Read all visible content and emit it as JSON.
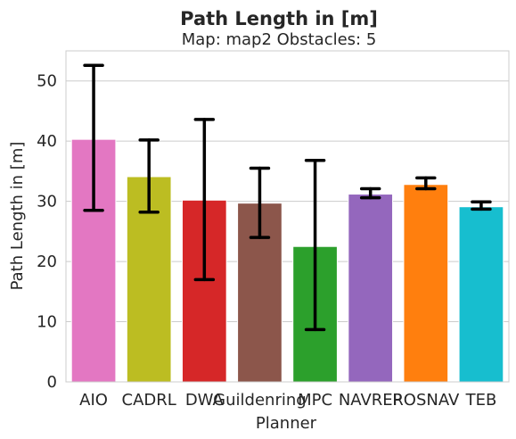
{
  "chart_data": {
    "type": "bar",
    "title": "Path Length in [m]",
    "subtitle": "Map: map2 Obstacles: 5",
    "xlabel": "Planner",
    "ylabel": "Path Length in [m]",
    "ylim": [
      0,
      55
    ],
    "yticks": [
      0,
      10,
      20,
      30,
      40,
      50
    ],
    "grid": "horizontal",
    "categories": [
      "AIO",
      "CADRL",
      "DWA",
      "Guildenring",
      "MPC",
      "NAVREP",
      "ROSNAV",
      "TEB"
    ],
    "values": [
      40.3,
      34.1,
      30.2,
      29.7,
      22.5,
      31.2,
      32.8,
      29.1
    ],
    "error_low": [
      28.5,
      28.2,
      17.0,
      24.0,
      8.7,
      30.6,
      32.1,
      28.7
    ],
    "error_high": [
      52.6,
      40.2,
      43.6,
      35.5,
      36.8,
      32.1,
      33.9,
      29.9
    ],
    "colors": [
      "#e377c2",
      "#bcbd22",
      "#d62728",
      "#8c564b",
      "#2ca02c",
      "#9467bd",
      "#ff7f0e",
      "#17becf"
    ]
  }
}
